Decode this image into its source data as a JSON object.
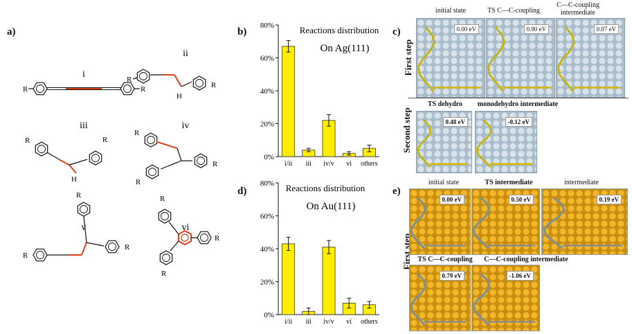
{
  "panel_a": {
    "label": "a)",
    "structures": [
      "i",
      "ii",
      "iii",
      "iv",
      "v",
      "vi"
    ],
    "substituent": "R",
    "h_label": "H"
  },
  "chart_data": [
    {
      "panel": "b)",
      "type": "bar",
      "title": "Reactions distribution",
      "subtitle": "On Ag(111)",
      "categories": [
        "i/ii",
        "iii",
        "iv/v",
        "vi",
        "others"
      ],
      "values": [
        67,
        4,
        22,
        2,
        5
      ],
      "errors": [
        3.5,
        1,
        3.5,
        1,
        2
      ],
      "yticks": [
        "0%",
        "20%",
        "40%",
        "60%",
        "80%"
      ],
      "ylim": [
        0,
        80
      ],
      "bar_color": "#ffee00"
    },
    {
      "panel": "d)",
      "type": "bar",
      "title": "Reactions distribution",
      "subtitle": "On Au(111)",
      "categories": [
        "i/ii",
        "iii",
        "iv/v",
        "vi",
        "others"
      ],
      "values": [
        43,
        2,
        41,
        7,
        6
      ],
      "errors": [
        4,
        2,
        4,
        3,
        2
      ],
      "yticks": [
        "0%",
        "20%",
        "40%",
        "60%",
        "80%"
      ],
      "ylim": [
        0,
        80
      ],
      "bar_color": "#ffee00"
    }
  ],
  "panel_c": {
    "label": "c)",
    "first_step_label": "First step",
    "second_step_label": "Second step",
    "first_step": [
      {
        "title": "initial state",
        "energy": "0.00 eV"
      },
      {
        "title": "TS C—C-coupling",
        "energy": "0.90 eV"
      },
      {
        "title": "C—C-coupling intermediate",
        "energy": "0.07 eV"
      }
    ],
    "second_step": [
      {
        "title": "TS dehydro",
        "energy": "0.48 eV"
      },
      {
        "title": "monodehydro intermediate",
        "energy": "-0.12 eV"
      }
    ]
  },
  "panel_e": {
    "label": "e)",
    "first_step_label": "First step",
    "row1": [
      {
        "title": "initial state",
        "energy": "0.00 eV"
      },
      {
        "title": "TS intermediate",
        "energy": "0.50 eV"
      },
      {
        "title": "intermediate",
        "energy": "0.19 eV"
      }
    ],
    "row2": [
      {
        "title": "TS C—C-coupling",
        "energy": "0.79 eV"
      },
      {
        "title": "C—C-coupling intermediate",
        "energy": "-1.06 eV"
      }
    ]
  }
}
